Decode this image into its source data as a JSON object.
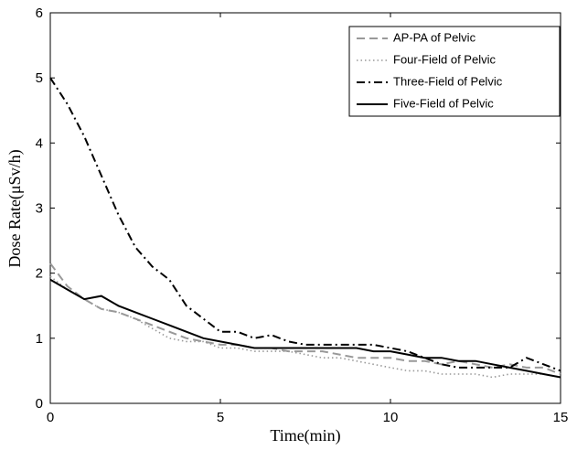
{
  "chart_data": {
    "type": "line",
    "xlabel": "Time(min)",
    "ylabel": "Dose Rate(μSv/h)",
    "x": [
      0,
      0.5,
      1,
      1.5,
      2,
      2.5,
      3,
      3.5,
      4,
      4.5,
      5,
      5.5,
      6,
      6.5,
      7,
      7.5,
      8,
      8.5,
      9,
      9.5,
      10,
      10.5,
      11,
      11.5,
      12,
      12.5,
      13,
      13.5,
      14,
      14.5,
      15
    ],
    "series": [
      {
        "name": "AP-PA of Pelvic",
        "color": "#999999",
        "style": "dashed",
        "values": [
          2.15,
          1.8,
          1.6,
          1.45,
          1.4,
          1.3,
          1.2,
          1.1,
          1.0,
          0.95,
          0.9,
          0.9,
          0.85,
          0.85,
          0.8,
          0.8,
          0.8,
          0.75,
          0.7,
          0.7,
          0.7,
          0.65,
          0.65,
          0.6,
          0.65,
          0.6,
          0.55,
          0.6,
          0.55,
          0.55,
          0.45
        ]
      },
      {
        "name": "Four-Field of Pelvic",
        "color": "#999999",
        "style": "dotted",
        "values": [
          1.95,
          1.75,
          1.6,
          1.45,
          1.4,
          1.3,
          1.15,
          1.0,
          0.95,
          0.95,
          0.85,
          0.85,
          0.8,
          0.8,
          0.8,
          0.75,
          0.7,
          0.7,
          0.65,
          0.6,
          0.55,
          0.5,
          0.5,
          0.45,
          0.45,
          0.45,
          0.4,
          0.45,
          0.45,
          0.45,
          0.4
        ]
      },
      {
        "name": "Three-Field of Pelvic",
        "color": "#000000",
        "style": "dashdot",
        "values": [
          5.0,
          4.6,
          4.1,
          3.5,
          2.9,
          2.4,
          2.1,
          1.9,
          1.5,
          1.3,
          1.1,
          1.1,
          1.0,
          1.05,
          0.95,
          0.9,
          0.9,
          0.9,
          0.9,
          0.9,
          0.85,
          0.8,
          0.7,
          0.6,
          0.55,
          0.55,
          0.55,
          0.55,
          0.7,
          0.6,
          0.5
        ]
      },
      {
        "name": "Five-Field of Pelvic",
        "color": "#000000",
        "style": "solid",
        "values": [
          1.9,
          1.75,
          1.6,
          1.65,
          1.5,
          1.4,
          1.3,
          1.2,
          1.1,
          1.0,
          0.95,
          0.9,
          0.85,
          0.85,
          0.85,
          0.85,
          0.85,
          0.85,
          0.85,
          0.8,
          0.8,
          0.75,
          0.7,
          0.7,
          0.65,
          0.65,
          0.6,
          0.55,
          0.5,
          0.45,
          0.4
        ]
      }
    ],
    "xlim": [
      0,
      15
    ],
    "xticks": [
      0,
      5,
      10,
      15
    ],
    "ylim": [
      0,
      6
    ],
    "yticks": [
      0,
      1,
      2,
      3,
      4,
      5,
      6
    ],
    "legend": "upper right",
    "grid": false
  }
}
